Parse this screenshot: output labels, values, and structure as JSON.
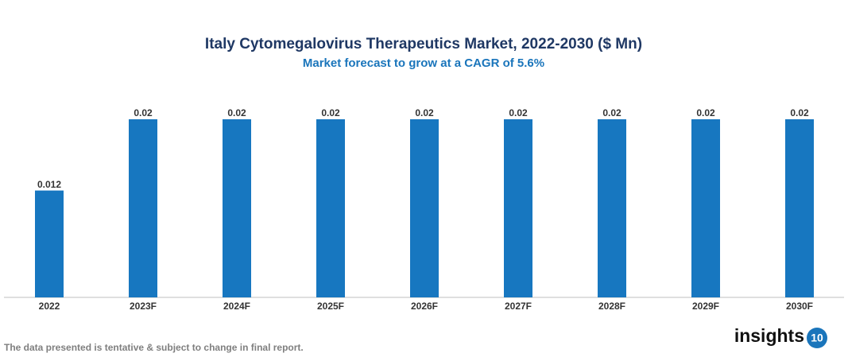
{
  "chart_data": {
    "type": "bar",
    "title": "Italy Cytomegalovirus Therapeutics Market, 2022-2030 ($ Mn)",
    "subtitle": "Market forecast to grow at a CAGR of 5.6%",
    "categories": [
      "2022",
      "2023F",
      "2024F",
      "2025F",
      "2026F",
      "2027F",
      "2028F",
      "2029F",
      "2030F"
    ],
    "values": [
      0.012,
      0.02,
      0.02,
      0.02,
      0.02,
      0.02,
      0.02,
      0.02,
      0.02
    ],
    "color": "#1777c0"
  },
  "footnote": "The data presented is tentative & subject to change in final report.",
  "brand": {
    "name": "insights",
    "badge": "10"
  }
}
